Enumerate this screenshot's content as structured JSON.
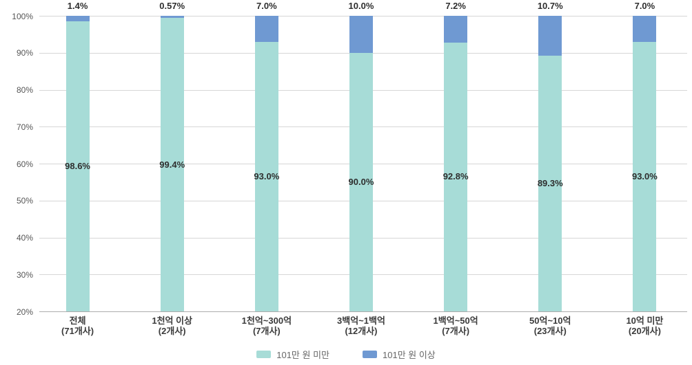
{
  "chart_data": {
    "type": "bar",
    "variant": "stacked-100",
    "title": "",
    "xlabel": "",
    "ylabel": "",
    "ylim": [
      20,
      100
    ],
    "grid": true,
    "legend_position": "bottom",
    "yticks": [
      {
        "value": 100,
        "label": "100%"
      },
      {
        "value": 90,
        "label": "90%"
      },
      {
        "value": 80,
        "label": "80%"
      },
      {
        "value": 70,
        "label": "70%"
      },
      {
        "value": 60,
        "label": "60%"
      },
      {
        "value": 50,
        "label": "50%"
      },
      {
        "value": 40,
        "label": "40%"
      },
      {
        "value": 30,
        "label": "30%"
      },
      {
        "value": 20,
        "label": "20%"
      }
    ],
    "categories": [
      {
        "label": "전체",
        "count": "(71개사)"
      },
      {
        "label": "1천억 이상",
        "count": "(2개사)"
      },
      {
        "label": "1천억~300억",
        "count": "(7개사)"
      },
      {
        "label": "3백억~1백억",
        "count": "(12개사)"
      },
      {
        "label": "1백억~50억",
        "count": "(7개사)"
      },
      {
        "label": "50억~10억",
        "count": "(23개사)"
      },
      {
        "label": "10억 미만",
        "count": "(20개사)"
      }
    ],
    "series": [
      {
        "name": "101만 원 미만",
        "color": "#a7dcd7",
        "values": [
          98.6,
          99.4,
          93.0,
          90.0,
          92.8,
          89.3,
          93.0
        ],
        "labels": [
          "98.6%",
          "99.4%",
          "93.0%",
          "90.0%",
          "92.8%",
          "89.3%",
          "93.0%"
        ],
        "label_placement": "inside-center"
      },
      {
        "name": "101만 원 이상",
        "color": "#6f99d2",
        "values": [
          1.4,
          0.57,
          7.0,
          10.0,
          7.2,
          10.7,
          7.0
        ],
        "labels": [
          "1.4%",
          "0.57%",
          "7.0%",
          "10.0%",
          "7.2%",
          "10.7%",
          "7.0%"
        ],
        "label_placement": "above-bar"
      }
    ]
  }
}
